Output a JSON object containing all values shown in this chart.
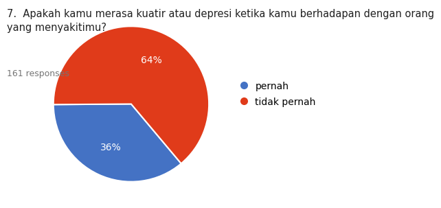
{
  "title": "7.  Apakah kamu merasa kuatir atau depresi ketika kamu berhadapan dengan orang\nyang menyakitimu?",
  "subtitle": "161 responses",
  "slices": [
    36,
    64
  ],
  "labels": [
    "pernah",
    "tidak pernah"
  ],
  "colors": [
    "#4472c4",
    "#e03b1a"
  ],
  "pct_labels": [
    "36%",
    "64%"
  ],
  "pct_colors": [
    "white",
    "white"
  ],
  "title_fontsize": 10.5,
  "subtitle_fontsize": 9,
  "legend_fontsize": 10,
  "background_color": "#ffffff",
  "startangle": -50,
  "pct_distance": 0.62
}
